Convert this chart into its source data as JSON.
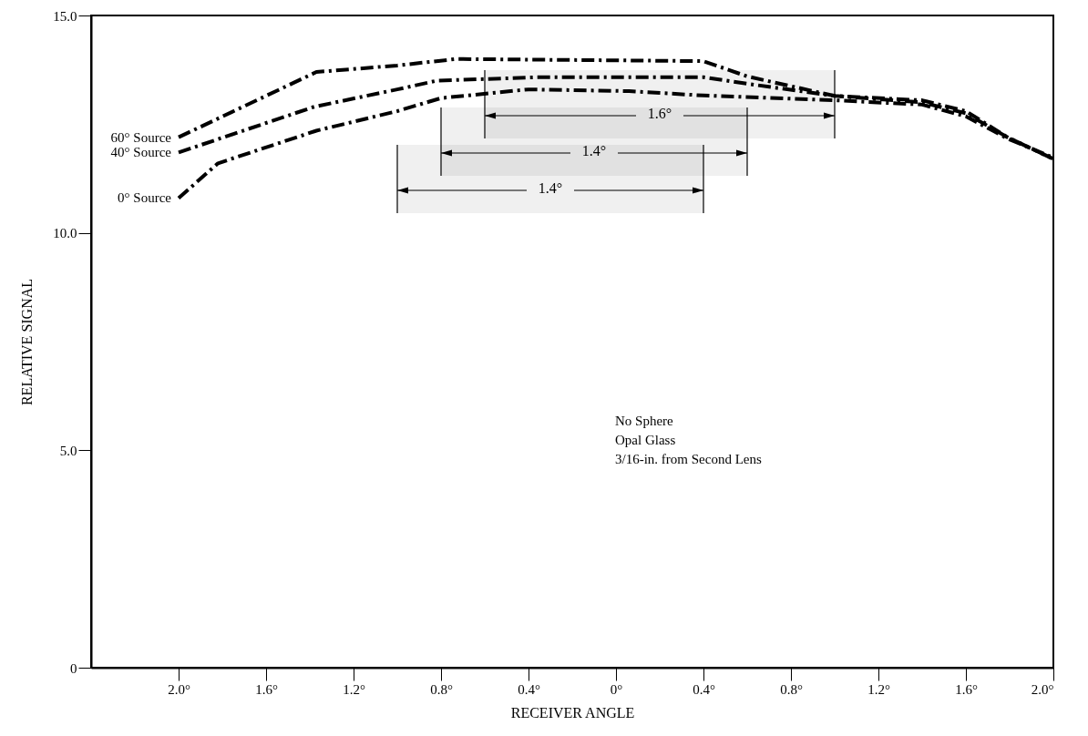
{
  "chart_data": {
    "type": "line",
    "xlabel": "RECEIVER ANGLE",
    "ylabel": "RELATIVE SIGNAL",
    "xlim": [
      -2.4,
      2.0
    ],
    "ylim": [
      0,
      15
    ],
    "xticks": [
      {
        "value": -2.0,
        "label": "2.0°"
      },
      {
        "value": -1.6,
        "label": "1.6°"
      },
      {
        "value": -1.2,
        "label": "1.2°"
      },
      {
        "value": -0.8,
        "label": "0.8°"
      },
      {
        "value": -0.4,
        "label": "0.4°"
      },
      {
        "value": 0,
        "label": "0°"
      },
      {
        "value": 0.4,
        "label": "0.4°"
      },
      {
        "value": 0.8,
        "label": "0.8°"
      },
      {
        "value": 1.2,
        "label": "1.2°"
      },
      {
        "value": 1.6,
        "label": "1.6°"
      },
      {
        "value": 2.0,
        "label": "2.0°"
      }
    ],
    "yticks": [
      0,
      {
        "value": 5,
        "label": "5.0"
      },
      {
        "value": 10,
        "label": "10.0"
      },
      {
        "value": 15,
        "label": "15.0"
      }
    ],
    "line_style": "dashed",
    "series": [
      {
        "name": "60° Source",
        "color": "#000000",
        "x": [
          -2.0,
          -1.37,
          -1.0,
          -0.73,
          0.4,
          0.6,
          1.0,
          1.4,
          1.6,
          1.79,
          2.0
        ],
        "values": [
          12.2,
          13.7,
          13.85,
          14.0,
          13.95,
          13.6,
          13.15,
          13.05,
          12.8,
          12.2,
          11.7
        ]
      },
      {
        "name": "40° Source",
        "color": "#000000",
        "x": [
          -2.0,
          -1.38,
          -1.0,
          -0.82,
          -0.36,
          0.4,
          0.6,
          1.0,
          1.4,
          1.6,
          1.79,
          2.0
        ],
        "values": [
          11.85,
          12.9,
          13.3,
          13.5,
          13.58,
          13.58,
          13.43,
          13.15,
          13.0,
          12.75,
          12.2,
          11.7
        ]
      },
      {
        "name": "0° Source",
        "color": "#000000",
        "x": [
          -2.0,
          -1.82,
          -1.37,
          -1.0,
          -0.8,
          -0.4,
          0.06,
          0.4,
          1.0,
          1.4,
          1.6,
          1.79,
          2.0
        ],
        "values": [
          10.8,
          11.6,
          12.35,
          12.8,
          13.1,
          13.3,
          13.26,
          13.16,
          13.05,
          12.95,
          12.68,
          12.17,
          11.73
        ]
      }
    ],
    "bands": [
      {
        "axis": "x",
        "from": -0.6,
        "to": 1.0,
        "label": "1.6°"
      },
      {
        "axis": "x",
        "from": -0.8,
        "to": 0.6,
        "label": "1.4°"
      },
      {
        "axis": "x",
        "from": -1.0,
        "to": 0.4,
        "label": "1.4°"
      }
    ],
    "annotations": [
      "No Sphere",
      "Opal Glass",
      "3/16-in. from Second Lens"
    ]
  }
}
